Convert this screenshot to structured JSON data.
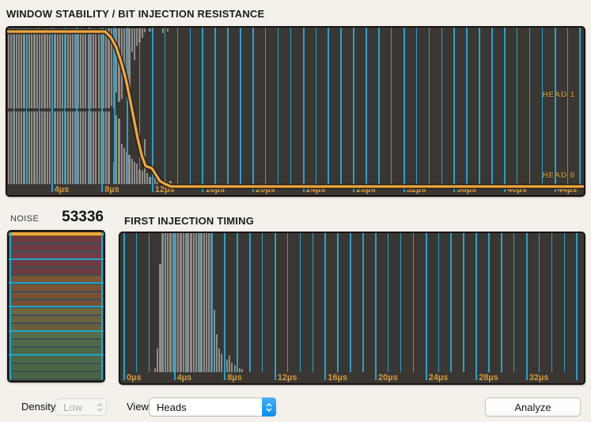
{
  "titles": {
    "top_chart": "WINDOW STABILITY / BIT INJECTION RESISTANCE",
    "bottom_chart": "FIRST INJECTION TIMING"
  },
  "noise": {
    "label": "NOISE",
    "value": "53336"
  },
  "head_labels": {
    "head1": "HEAD 1",
    "head0": "HEAD 0"
  },
  "controls": {
    "density_label": "Density",
    "density_value": "Low",
    "view_label": "View",
    "view_value": "Heads",
    "analyze_label": "Analyze"
  },
  "colors": {
    "page_bg": "#f4f1eb",
    "chart_bg": "#3a3733",
    "grid_cyan": "#25a3cf",
    "bar_gray": "#8f8d89",
    "accent_orange": "#f1a83c",
    "axis_label_orange": "#d49a3c",
    "popup_blue_top": "#43b0fc",
    "popup_blue_bottom": "#0c8ef1"
  },
  "chart_data": [
    {
      "type": "bar",
      "id": "window_stability",
      "title": "WINDOW STABILITY / BIT INJECTION RESISTANCE",
      "x_unit": "µs",
      "x_tick_labels": [
        "4µs",
        "8µs",
        "12µs",
        "16µs",
        "20µs",
        "24µs",
        "28µs",
        "32µs",
        "36µs",
        "40µs",
        "44µs"
      ],
      "x_axis_range_us": [
        0.5,
        46.3
      ],
      "grid_minor_every_us": 1,
      "grid_major_every_us": 4,
      "bin_start_us": 0.566,
      "bin_width_us": 0.204,
      "series": [
        {
          "name": "HEAD 1",
          "values": [
            1,
            1,
            1,
            1,
            1,
            1,
            1,
            1,
            1,
            1,
            1,
            1,
            1,
            1,
            1,
            1,
            1,
            1,
            1,
            1,
            1,
            1,
            1,
            1,
            1,
            1,
            1,
            1,
            1,
            1,
            1,
            1,
            1,
            1,
            1,
            1,
            1,
            1,
            1,
            1,
            0.97,
            1,
            0.8,
            0.92,
            0.88,
            0.6,
            0.5,
            0.95,
            0.3,
            0.4,
            0.22,
            0.18,
            0.12,
            0.05,
            0,
            0.04,
            0,
            0,
            0,
            0,
            0.06,
            0,
            0.04,
            0
          ]
        },
        {
          "name": "HEAD 0",
          "values": [
            1,
            1,
            1,
            1,
            1,
            1,
            1,
            1,
            1,
            1,
            1,
            1,
            1,
            1,
            1,
            1,
            1,
            1,
            1,
            1,
            1,
            1,
            1,
            1,
            1,
            1,
            1,
            1,
            1,
            1,
            1,
            1,
            1,
            1,
            1,
            1,
            1,
            1,
            1,
            1,
            0,
            0.3,
            0.95,
            0.9,
            0.55,
            0.5,
            0.45,
            0.4,
            0.35,
            0.3,
            0.28,
            0.2,
            0.18,
            0.62,
            0.15,
            0.1,
            0.08,
            0.1,
            0.05,
            0.08,
            0.04,
            0.05,
            0.03,
            0.04
          ]
        }
      ],
      "overlay_line": {
        "name": "stability-curve",
        "color": "#f1a83c",
        "points_us_y": [
          [
            0.57,
            5
          ],
          [
            8.3,
            5
          ],
          [
            8.74,
            12
          ],
          [
            9.18,
            25
          ],
          [
            9.56,
            43
          ],
          [
            9.94,
            65
          ],
          [
            10.25,
            89
          ],
          [
            10.57,
            115
          ],
          [
            10.88,
            140
          ],
          [
            11.19,
            161
          ],
          [
            11.51,
            175
          ],
          [
            12.01,
            178
          ],
          [
            12.33,
            186
          ],
          [
            12.64,
            194
          ],
          [
            13.08,
            198
          ],
          [
            13.52,
            201
          ],
          [
            46.3,
            201
          ]
        ]
      }
    },
    {
      "type": "bar",
      "id": "first_injection_timing",
      "title": "FIRST INJECTION TIMING",
      "x_unit": "µs",
      "x_tick_labels": [
        "0µs",
        "4µs",
        "8µs",
        "12µs",
        "16µs",
        "20µs",
        "24µs",
        "28µs",
        "32µs"
      ],
      "x_axis_range_us": [
        0,
        36.5
      ],
      "grid_minor_every_us": 1,
      "grid_major_every_us": 4,
      "bin_start_us": 2.45,
      "bin_width_us": 0.204,
      "values": [
        0.03,
        0.17,
        0.78,
        1,
        1,
        1,
        1,
        1,
        1,
        1,
        1,
        1,
        1,
        1,
        1,
        1,
        1,
        1,
        1,
        1,
        1,
        1,
        1,
        0.45,
        0.27,
        0.17,
        0.13,
        0.11,
        0.09,
        0.12,
        0.07,
        0.05,
        0.04,
        0.03,
        0.02
      ]
    },
    {
      "type": "bar",
      "id": "noise_profile",
      "orientation": "horizontal",
      "title": "NOISE",
      "noise_value": 53336,
      "grid_major_every_stripes": 3,
      "stripe_colors": [
        "#6f3b42",
        "#6e3a41",
        "#713d43",
        "#6f3b41",
        "#6d3a40",
        "#7d5535",
        "#7b5233",
        "#795132",
        "#784f31",
        "#6f653f",
        "#6d633d",
        "#6a603c",
        "#586c47",
        "#506a48",
        "#4e6847",
        "#4d6746",
        "#4c6645",
        "#4b6544"
      ]
    }
  ]
}
